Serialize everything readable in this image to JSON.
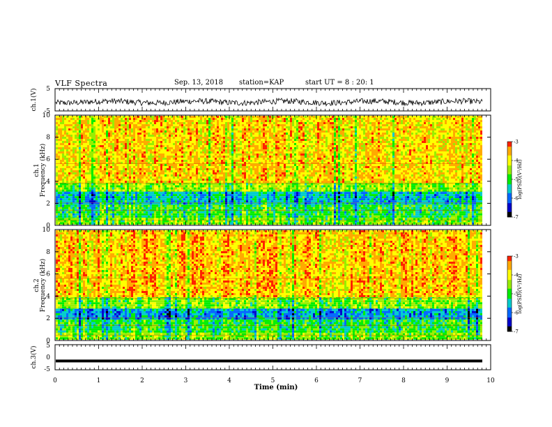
{
  "header": {
    "title": "VLF Spectra",
    "date": "Sep. 13, 2018",
    "station": "station=KAP",
    "start_ut": "start UT = 8 : 20: 1"
  },
  "chart_data": [
    {
      "type": "line",
      "name": "ch1-waveform",
      "ylabel": "ch.1(V)",
      "ylim": [
        -5,
        5
      ],
      "yticks": [
        "5",
        "-5"
      ],
      "x_range_min": [
        0,
        9.8
      ],
      "summary": "noisy waveform fluctuating roughly between -2.5 V and 1 V around -1 V"
    },
    {
      "type": "heatmap",
      "name": "ch1-spectrogram",
      "ylabel_channel": "ch.1",
      "ylabel": "Frequency (kHz)",
      "ylim": [
        0,
        10
      ],
      "yticks": [
        "0",
        "2",
        "4",
        "6",
        "8",
        "10"
      ],
      "colorbar": {
        "label": "log(PSD)(V²/Hz)",
        "range": [
          -7,
          -3
        ],
        "ticks": [
          "-3",
          "-4",
          "-5",
          "-6",
          "-7"
        ]
      },
      "bands": [
        {
          "from_khz": 0,
          "to_khz": 0.8,
          "level": -4.6
        },
        {
          "from_khz": 0.8,
          "to_khz": 2.0,
          "level": -5.0
        },
        {
          "from_khz": 2.0,
          "to_khz": 3.2,
          "level": -5.5
        },
        {
          "from_khz": 3.2,
          "to_khz": 4.0,
          "level": -4.5
        },
        {
          "from_khz": 4.0,
          "to_khz": 10,
          "level": -3.8
        }
      ]
    },
    {
      "type": "heatmap",
      "name": "ch2-spectrogram",
      "ylabel_channel": "ch.2",
      "ylabel": "Frequency (kHz)",
      "ylim": [
        0,
        10
      ],
      "yticks": [
        "0",
        "2",
        "4",
        "6",
        "8",
        "10"
      ],
      "colorbar": {
        "label": "log(PSD)(V²/Hz)",
        "range": [
          -7,
          -3
        ],
        "ticks": [
          "-3",
          "-4",
          "-5",
          "-6",
          "-7"
        ]
      },
      "bands": [
        {
          "from_khz": 0,
          "to_khz": 0.8,
          "level": -4.6
        },
        {
          "from_khz": 0.8,
          "to_khz": 2.0,
          "level": -5.0
        },
        {
          "from_khz": 2.0,
          "to_khz": 3.0,
          "level": -5.7
        },
        {
          "from_khz": 3.0,
          "to_khz": 4.0,
          "level": -4.6
        },
        {
          "from_khz": 4.0,
          "to_khz": 10,
          "level": -3.7
        }
      ]
    },
    {
      "type": "line",
      "name": "ch3-waveform",
      "ylabel": "ch.3(V)",
      "ylim": [
        -5,
        5
      ],
      "yticks": [
        "5",
        "0",
        "-5"
      ],
      "x_range_min": [
        0,
        9.8
      ],
      "constant_value": -1.5
    }
  ],
  "xaxis": {
    "label": "Time (min)",
    "range": [
      0,
      10
    ],
    "ticks": [
      "0",
      "1",
      "2",
      "3",
      "4",
      "5",
      "6",
      "7",
      "8",
      "9",
      "10"
    ]
  },
  "colormap": [
    "#000000",
    "#0000cc",
    "#0066ff",
    "#00cccc",
    "#00ee00",
    "#99ee00",
    "#ffff00",
    "#ffaa00",
    "#ff2200",
    "#ffffff"
  ]
}
